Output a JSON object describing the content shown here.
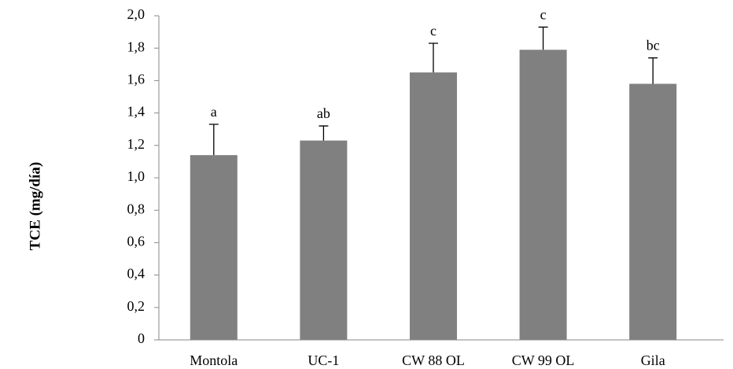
{
  "chart_data": {
    "type": "bar",
    "y_label": "TCE (mg/día)",
    "categories": [
      "Montola",
      "UC-1",
      "CW 88 OL",
      "CW 99 OL",
      "Gila"
    ],
    "values": [
      1.14,
      1.23,
      1.65,
      1.79,
      1.58
    ],
    "errors": [
      0.19,
      0.09,
      0.18,
      0.14,
      0.16
    ],
    "annotations": [
      "a",
      "ab",
      "c",
      "c",
      "bc"
    ],
    "color": "#808080",
    "ylim": [
      0,
      2.0
    ],
    "yticks": [
      0,
      {
        "value": 0.2,
        "label": "0,2"
      },
      {
        "value": 0.4,
        "label": "0,4"
      },
      {
        "value": 0.6,
        "label": "0,6"
      },
      {
        "value": 0.8,
        "label": "0,8"
      },
      {
        "value": 1.0,
        "label": "1,0"
      },
      {
        "value": 1.2,
        "label": "1,2"
      },
      {
        "value": 1.4,
        "label": "1,4"
      },
      {
        "value": 1.6,
        "label": "1,6"
      },
      {
        "value": 1.8,
        "label": "1,8"
      },
      {
        "value": 2.0,
        "label": "2,0"
      }
    ],
    "grid": false
  }
}
